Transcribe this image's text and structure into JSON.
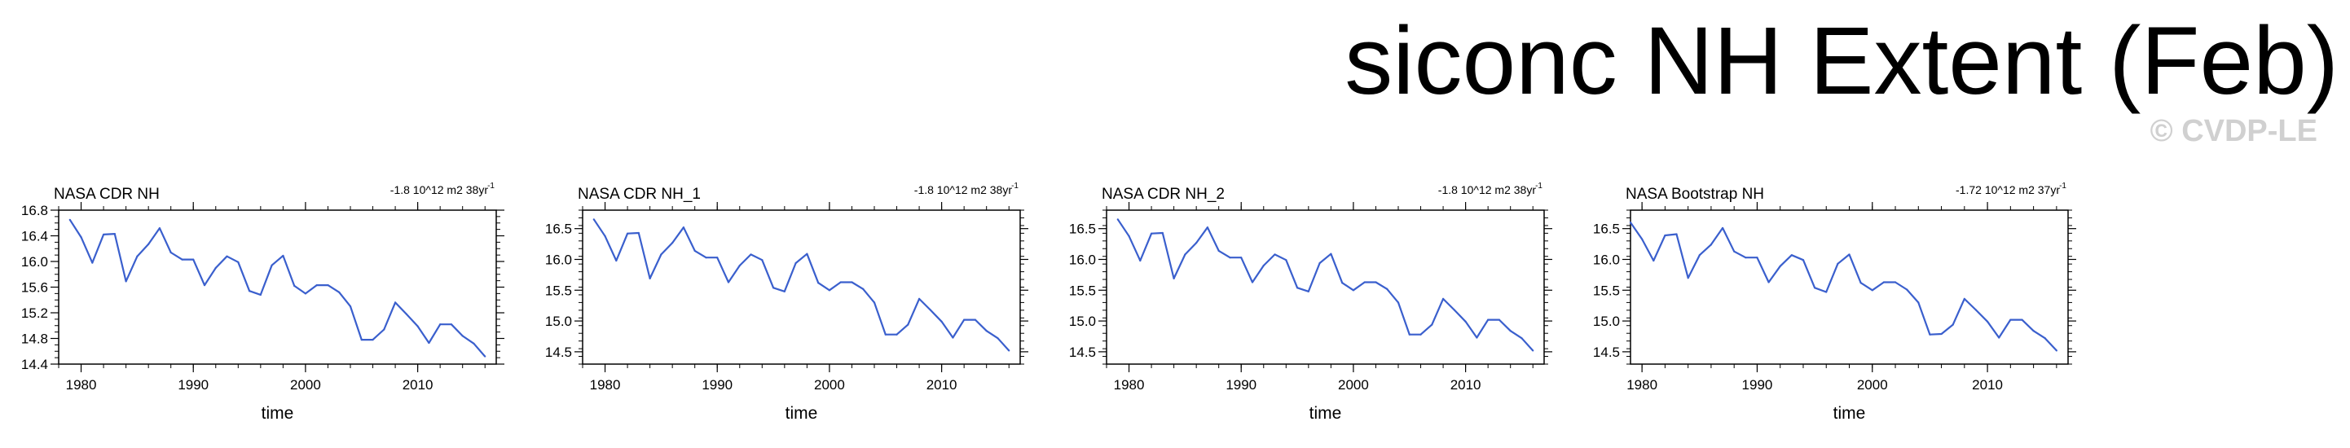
{
  "title": "siconc NH Extent (Feb)",
  "watermark": "© CVDP-LE",
  "series_color": "#3a5fcd",
  "chart_data": [
    {
      "type": "line",
      "title": "NASA CDR NH",
      "trend": "-1.8 10^12 m2 38yr",
      "trend_exp": "-1",
      "xlabel": "time",
      "ylabel": "",
      "xlim": [
        1978,
        2017
      ],
      "ylim": [
        14.4,
        16.8
      ],
      "xticks": [
        1980,
        1990,
        2000,
        2010
      ],
      "yticks": [
        14.4,
        14.8,
        15.2,
        15.6,
        16.0,
        16.4,
        16.8
      ],
      "ytick_labels": [
        "14.4",
        "14.8",
        "15.2",
        "15.6",
        "16.0",
        "16.4",
        "16.8"
      ],
      "x": [
        1979,
        1980,
        1981,
        1982,
        1983,
        1984,
        1985,
        1986,
        1987,
        1988,
        1989,
        1990,
        1991,
        1992,
        1993,
        1994,
        1995,
        1996,
        1997,
        1998,
        1999,
        2000,
        2001,
        2002,
        2003,
        2004,
        2005,
        2006,
        2007,
        2008,
        2009,
        2010,
        2011,
        2012,
        2013,
        2014,
        2015,
        2016
      ],
      "values": [
        16.65,
        16.38,
        15.98,
        16.42,
        16.43,
        15.69,
        16.08,
        16.27,
        16.52,
        16.14,
        16.03,
        16.03,
        15.63,
        15.9,
        16.08,
        15.99,
        15.54,
        15.48,
        15.94,
        16.09,
        15.62,
        15.5,
        15.63,
        15.63,
        15.52,
        15.3,
        14.78,
        14.78,
        14.94,
        15.36,
        15.18,
        14.99,
        14.73,
        15.02,
        15.02,
        14.84,
        14.72,
        14.52
      ]
    },
    {
      "type": "line",
      "title": "NASA CDR NH_1",
      "trend": "-1.8 10^12 m2 38yr",
      "trend_exp": "-1",
      "xlabel": "time",
      "ylabel": "",
      "xlim": [
        1978,
        2017
      ],
      "ylim": [
        14.3,
        16.8
      ],
      "xticks": [
        1980,
        1990,
        2000,
        2010
      ],
      "yticks": [
        14.5,
        15.0,
        15.5,
        16.0,
        16.5
      ],
      "ytick_labels": [
        "14.5",
        "15.0",
        "15.5",
        "16.0",
        "16.5"
      ],
      "x": [
        1979,
        1980,
        1981,
        1982,
        1983,
        1984,
        1985,
        1986,
        1987,
        1988,
        1989,
        1990,
        1991,
        1992,
        1993,
        1994,
        1995,
        1996,
        1997,
        1998,
        1999,
        2000,
        2001,
        2002,
        2003,
        2004,
        2005,
        2006,
        2007,
        2008,
        2009,
        2010,
        2011,
        2012,
        2013,
        2014,
        2015,
        2016
      ],
      "values": [
        16.65,
        16.38,
        15.98,
        16.42,
        16.43,
        15.69,
        16.08,
        16.27,
        16.52,
        16.14,
        16.03,
        16.03,
        15.63,
        15.9,
        16.08,
        15.99,
        15.54,
        15.48,
        15.94,
        16.09,
        15.62,
        15.5,
        15.63,
        15.63,
        15.52,
        15.3,
        14.78,
        14.78,
        14.94,
        15.36,
        15.18,
        14.99,
        14.73,
        15.02,
        15.02,
        14.84,
        14.72,
        14.52
      ]
    },
    {
      "type": "line",
      "title": "NASA CDR NH_2",
      "trend": "-1.8 10^12 m2 38yr",
      "trend_exp": "-1",
      "xlabel": "time",
      "ylabel": "",
      "xlim": [
        1978,
        2017
      ],
      "ylim": [
        14.3,
        16.8
      ],
      "xticks": [
        1980,
        1990,
        2000,
        2010
      ],
      "yticks": [
        14.5,
        15.0,
        15.5,
        16.0,
        16.5
      ],
      "ytick_labels": [
        "14.5",
        "15.0",
        "15.5",
        "16.0",
        "16.5"
      ],
      "x": [
        1979,
        1980,
        1981,
        1982,
        1983,
        1984,
        1985,
        1986,
        1987,
        1988,
        1989,
        1990,
        1991,
        1992,
        1993,
        1994,
        1995,
        1996,
        1997,
        1998,
        1999,
        2000,
        2001,
        2002,
        2003,
        2004,
        2005,
        2006,
        2007,
        2008,
        2009,
        2010,
        2011,
        2012,
        2013,
        2014,
        2015,
        2016
      ],
      "values": [
        16.65,
        16.38,
        15.98,
        16.42,
        16.43,
        15.69,
        16.08,
        16.27,
        16.52,
        16.14,
        16.03,
        16.03,
        15.63,
        15.9,
        16.08,
        15.99,
        15.54,
        15.48,
        15.94,
        16.09,
        15.62,
        15.5,
        15.63,
        15.63,
        15.52,
        15.3,
        14.78,
        14.78,
        14.94,
        15.36,
        15.18,
        14.99,
        14.73,
        15.02,
        15.02,
        14.84,
        14.72,
        14.52
      ]
    },
    {
      "type": "line",
      "title": "NASA Bootstrap NH",
      "trend": "-1.72 10^12 m2 37yr",
      "trend_exp": "-1",
      "xlabel": "time",
      "ylabel": "",
      "xlim": [
        1979,
        2017
      ],
      "ylim": [
        14.3,
        16.8
      ],
      "xticks": [
        1980,
        1990,
        2000,
        2010
      ],
      "yticks": [
        14.5,
        15.0,
        15.5,
        16.0,
        16.5
      ],
      "ytick_labels": [
        "14.5",
        "15.0",
        "15.5",
        "16.0",
        "16.5"
      ],
      "x": [
        1979,
        1980,
        1981,
        1982,
        1983,
        1984,
        1985,
        1986,
        1987,
        1988,
        1989,
        1990,
        1991,
        1992,
        1993,
        1994,
        1995,
        1996,
        1997,
        1998,
        1999,
        2000,
        2001,
        2002,
        2003,
        2004,
        2005,
        2006,
        2007,
        2008,
        2009,
        2010,
        2011,
        2012,
        2013,
        2014,
        2015,
        2016
      ],
      "values": [
        16.6,
        16.33,
        15.98,
        16.39,
        16.41,
        15.7,
        16.07,
        16.24,
        16.51,
        16.13,
        16.03,
        16.03,
        15.63,
        15.89,
        16.07,
        15.99,
        15.54,
        15.47,
        15.93,
        16.08,
        15.62,
        15.5,
        15.63,
        15.63,
        15.51,
        15.3,
        14.78,
        14.79,
        14.94,
        15.36,
        15.18,
        14.99,
        14.73,
        15.02,
        15.02,
        14.84,
        14.72,
        14.52
      ]
    }
  ]
}
